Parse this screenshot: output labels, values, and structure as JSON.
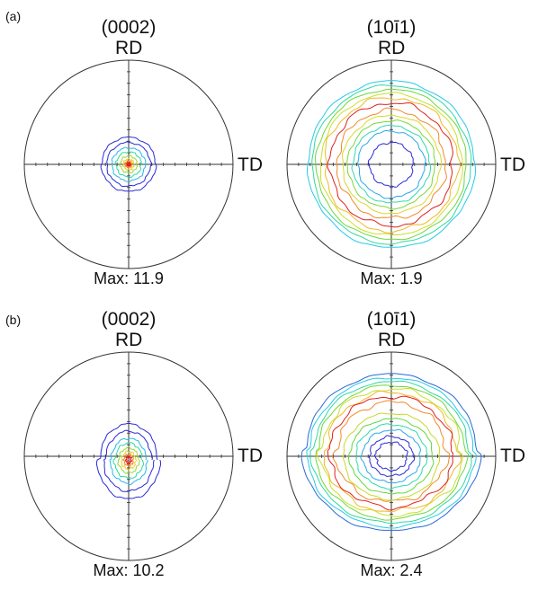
{
  "panels": [
    {
      "tag": "(a)",
      "figures": [
        {
          "title": "(0002)",
          "rd": "RD",
          "td": "TD",
          "max": "Max: 11.9",
          "kind": "basal",
          "levels": [
            {
              "r": 0.26,
              "c": "#2a2ad8"
            },
            {
              "r": 0.21,
              "c": "#2a2ad8"
            },
            {
              "r": 0.16,
              "c": "#29b7e8"
            },
            {
              "r": 0.12,
              "c": "#2ed9a0"
            },
            {
              "r": 0.08,
              "c": "#9ad83a"
            },
            {
              "r": 0.05,
              "c": "#f0d02a"
            },
            {
              "r": 0.03,
              "c": "#f08a2a"
            },
            {
              "r": 0.015,
              "c": "#e02020"
            }
          ]
        },
        {
          "title": "(10ī1)",
          "rd": "RD",
          "td": "TD",
          "max": "Max: 1.9",
          "kind": "ring",
          "levels": [
            {
              "r": 0.8,
              "c": "#29c9e8"
            },
            {
              "r": 0.76,
              "c": "#2ed9a0"
            },
            {
              "r": 0.72,
              "c": "#6fd83a"
            },
            {
              "r": 0.68,
              "c": "#c8e02a"
            },
            {
              "r": 0.64,
              "c": "#f0b82a"
            },
            {
              "r": 0.59,
              "c": "#e02020"
            },
            {
              "r": 0.52,
              "c": "#f08a2a"
            },
            {
              "r": 0.47,
              "c": "#d8d82a"
            },
            {
              "r": 0.42,
              "c": "#7ad83a"
            },
            {
              "r": 0.37,
              "c": "#2ed9b0"
            },
            {
              "r": 0.32,
              "c": "#29a8e8"
            },
            {
              "r": 0.21,
              "c": "#2a2ad8"
            }
          ]
        }
      ]
    },
    {
      "tag": "(b)",
      "figures": [
        {
          "title": "(0002)",
          "rd": "RD",
          "td": "TD",
          "max": "Max: 10.2",
          "kind": "basal-b",
          "levels": [
            {
              "r": 0.3,
              "c": "#2a2ad8"
            },
            {
              "r": 0.24,
              "c": "#2a2ad8"
            },
            {
              "r": 0.18,
              "c": "#29b7e8"
            },
            {
              "r": 0.14,
              "c": "#2ed9a0"
            },
            {
              "r": 0.1,
              "c": "#9ad83a"
            },
            {
              "r": 0.07,
              "c": "#f0d02a"
            },
            {
              "r": 0.045,
              "c": "#f08a2a"
            },
            {
              "r": 0.025,
              "c": "#e02020"
            }
          ]
        },
        {
          "title": "(10ī1)",
          "rd": "RD",
          "td": "TD",
          "max": "Max: 2.4",
          "kind": "ring-b",
          "levels": [
            {
              "r": 0.82,
              "c": "#2a6ad8"
            },
            {
              "r": 0.78,
              "c": "#29c9e8"
            },
            {
              "r": 0.74,
              "c": "#2ed9a0"
            },
            {
              "r": 0.7,
              "c": "#6fd83a"
            },
            {
              "r": 0.66,
              "c": "#c8e02a"
            },
            {
              "r": 0.62,
              "c": "#f0b82a"
            },
            {
              "r": 0.58,
              "c": "#e02020"
            },
            {
              "r": 0.52,
              "c": "#f08a2a"
            },
            {
              "r": 0.46,
              "c": "#c8d82a"
            },
            {
              "r": 0.4,
              "c": "#5fd83a"
            },
            {
              "r": 0.34,
              "c": "#2ed9b0"
            },
            {
              "r": 0.28,
              "c": "#29a8e8"
            },
            {
              "r": 0.21,
              "c": "#2a2ad8"
            },
            {
              "r": 0.15,
              "c": "#2a2ad8"
            }
          ]
        }
      ]
    }
  ]
}
